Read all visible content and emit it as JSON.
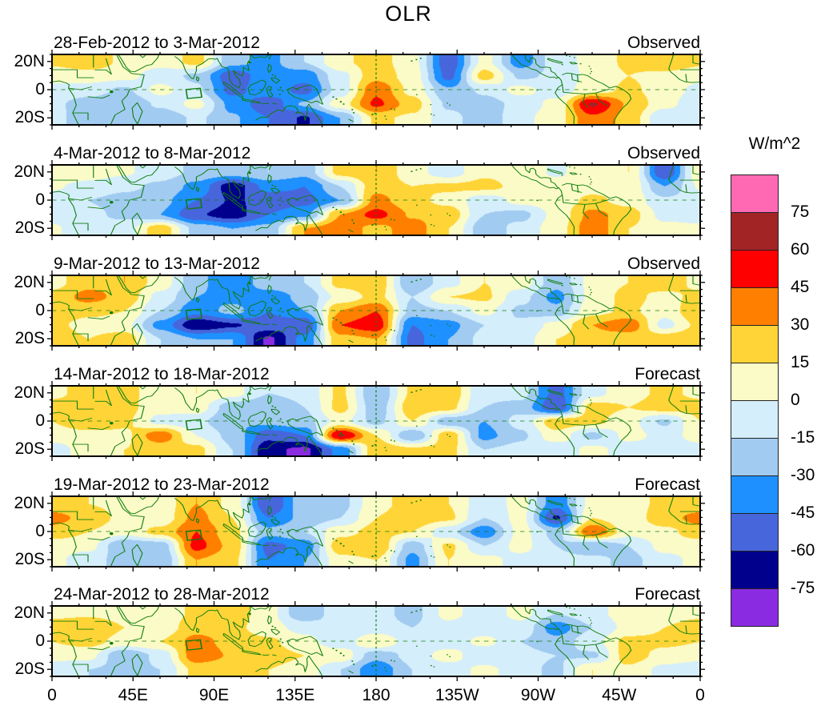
{
  "title": "OLR",
  "units_label": "W/m^2",
  "axes": {
    "x_tick_labels": [
      "0",
      "45E",
      "90E",
      "135E",
      "180",
      "135W",
      "90W",
      "45W",
      "0"
    ],
    "x_tick_degrees": [
      0,
      45,
      90,
      135,
      180,
      225,
      270,
      315,
      360
    ],
    "y_tick_labels": [
      "20N",
      "0",
      "20S"
    ],
    "lat_range": [
      -25,
      25
    ],
    "lon_range": [
      0,
      360
    ]
  },
  "colorbar": {
    "tick_labels": [
      "75",
      "60",
      "45",
      "30",
      "15",
      "0",
      "-15",
      "-30",
      "-45",
      "-60",
      "-75"
    ],
    "level_step": 15,
    "colors_top_to_bottom": [
      "#FF69B4",
      "#A22425",
      "#FF0000",
      "#FF8000",
      "#FFD436",
      "#FBFBC7",
      "#D5EEFB",
      "#A1CBF1",
      "#1E90FF",
      "#4766DC",
      "#00008C",
      "#8A2BE2"
    ]
  },
  "map_style": {
    "coastline_color": "#0E7D0E",
    "gridline_color": "#0E7D0E",
    "border_color": "#000000"
  },
  "panels": [
    {
      "title": "28-Feb-2012 to 3-Mar-2012",
      "tag": "Observed"
    },
    {
      "title": "4-Mar-2012 to 8-Mar-2012",
      "tag": "Observed"
    },
    {
      "title": "9-Mar-2012 to 13-Mar-2012",
      "tag": "Observed"
    },
    {
      "title": "14-Mar-2012 to 18-Mar-2012",
      "tag": "Forecast"
    },
    {
      "title": "19-Mar-2012 to 23-Mar-2012",
      "tag": "Forecast"
    },
    {
      "title": "24-Mar-2012 to 28-Mar-2012",
      "tag": "Forecast"
    }
  ],
  "chart_data": {
    "type": "heatmap",
    "variable": "OLR anomaly",
    "units": "W/m^2",
    "lon_grid_deg": [
      0,
      20,
      40,
      60,
      80,
      100,
      120,
      140,
      160,
      180,
      200,
      220,
      240,
      260,
      280,
      300,
      320,
      340
    ],
    "lat_grid_deg": [
      20,
      10,
      0,
      -10,
      -20
    ],
    "levels": [
      -75,
      -60,
      -45,
      -30,
      -15,
      0,
      15,
      30,
      45,
      60,
      75
    ],
    "panels": [
      {
        "title": "28-Feb-2012 to 3-Mar-2012",
        "tag": "Observed",
        "values": [
          [
            18,
            25,
            12,
            5,
            20,
            -25,
            -35,
            -15,
            12,
            22,
            5,
            -55,
            5,
            -38,
            -8,
            5,
            18,
            28
          ],
          [
            5,
            8,
            5,
            -8,
            -18,
            -55,
            -35,
            -40,
            -5,
            25,
            8,
            -50,
            22,
            -18,
            -12,
            5,
            15,
            10
          ],
          [
            -5,
            -8,
            -18,
            5,
            -12,
            -50,
            -35,
            -50,
            -8,
            42,
            10,
            -28,
            -12,
            5,
            -8,
            8,
            18,
            8
          ],
          [
            -12,
            -22,
            -30,
            -12,
            5,
            -35,
            -55,
            -28,
            8,
            48,
            22,
            -18,
            -22,
            -10,
            5,
            62,
            28,
            5
          ],
          [
            -8,
            -28,
            -18,
            -28,
            -12,
            -28,
            -45,
            -62,
            -30,
            18,
            12,
            -10,
            -25,
            -5,
            10,
            42,
            25,
            -15
          ]
        ]
      },
      {
        "title": "4-Mar-2012 to 8-Mar-2012",
        "tag": "Observed",
        "values": [
          [
            12,
            8,
            2,
            -8,
            -18,
            -22,
            -15,
            -25,
            20,
            30,
            5,
            -8,
            12,
            8,
            -2,
            8,
            15,
            -58
          ],
          [
            2,
            -5,
            -12,
            -18,
            -35,
            -68,
            -40,
            -45,
            -15,
            25,
            15,
            18,
            20,
            10,
            5,
            10,
            12,
            -30
          ],
          [
            -8,
            -15,
            -20,
            -25,
            -45,
            -62,
            -55,
            -50,
            -30,
            35,
            20,
            10,
            -10,
            5,
            8,
            18,
            10,
            -12
          ],
          [
            -5,
            -12,
            -18,
            -30,
            -58,
            -68,
            -45,
            -35,
            30,
            50,
            28,
            25,
            -15,
            -20,
            5,
            35,
            22,
            -5
          ],
          [
            2,
            -10,
            -8,
            25,
            -20,
            -30,
            -25,
            30,
            40,
            25,
            38,
            15,
            -25,
            -10,
            8,
            40,
            15,
            5
          ]
        ]
      },
      {
        "title": "9-Mar-2012 to 13-Mar-2012",
        "tag": "Observed",
        "values": [
          [
            10,
            25,
            30,
            8,
            -25,
            -45,
            -20,
            -15,
            20,
            25,
            -30,
            -5,
            15,
            8,
            -25,
            5,
            15,
            25
          ],
          [
            20,
            35,
            25,
            -5,
            -30,
            -35,
            -40,
            -25,
            5,
            20,
            -15,
            15,
            18,
            -10,
            -35,
            5,
            20,
            10
          ],
          [
            30,
            20,
            15,
            -15,
            -40,
            -25,
            -45,
            -30,
            30,
            45,
            -20,
            -15,
            5,
            -18,
            -25,
            10,
            18,
            5
          ],
          [
            20,
            8,
            5,
            -35,
            -72,
            -62,
            -50,
            -60,
            45,
            55,
            -45,
            -35,
            -15,
            -12,
            5,
            30,
            40,
            -5
          ],
          [
            30,
            15,
            25,
            -15,
            -30,
            -30,
            -78,
            -40,
            25,
            30,
            -50,
            -30,
            -10,
            -8,
            15,
            25,
            20,
            25
          ]
        ]
      },
      {
        "title": "14-Mar-2012 to 18-Mar-2012",
        "tag": "Forecast",
        "values": [
          [
            12,
            20,
            18,
            10,
            15,
            5,
            -15,
            -10,
            18,
            -30,
            18,
            25,
            -12,
            -10,
            -50,
            -5,
            10,
            18
          ],
          [
            20,
            25,
            20,
            5,
            8,
            -25,
            -30,
            -15,
            20,
            -25,
            25,
            20,
            -15,
            -20,
            -60,
            22,
            15,
            22
          ],
          [
            15,
            30,
            18,
            -5,
            -10,
            -30,
            -25,
            -20,
            5,
            -20,
            15,
            -25,
            -30,
            -10,
            25,
            20,
            5,
            -18
          ],
          [
            5,
            8,
            12,
            40,
            0,
            -20,
            -55,
            -45,
            62,
            15,
            -30,
            25,
            -35,
            -18,
            10,
            -20,
            5,
            -5
          ],
          [
            -5,
            5,
            15,
            20,
            20,
            -15,
            -72,
            -78,
            -40,
            25,
            18,
            20,
            -15,
            -10,
            -12,
            5,
            -8,
            -5
          ]
        ]
      },
      {
        "title": "19-Mar-2012 to 23-Mar-2012",
        "tag": "Forecast",
        "values": [
          [
            20,
            15,
            10,
            5,
            30,
            10,
            -60,
            -20,
            -20,
            10,
            22,
            15,
            -10,
            5,
            -40,
            5,
            10,
            18
          ],
          [
            35,
            25,
            10,
            5,
            35,
            15,
            -45,
            -25,
            -15,
            15,
            25,
            18,
            -15,
            5,
            -62,
            15,
            5,
            25
          ],
          [
            25,
            15,
            5,
            20,
            45,
            20,
            -25,
            -15,
            10,
            20,
            15,
            -10,
            -40,
            5,
            -20,
            45,
            5,
            10
          ],
          [
            5,
            5,
            -30,
            -25,
            50,
            25,
            -50,
            -40,
            25,
            30,
            -25,
            18,
            -15,
            5,
            -15,
            -30,
            -15,
            5
          ],
          [
            5,
            -10,
            -20,
            -30,
            30,
            20,
            -45,
            -30,
            10,
            15,
            -35,
            15,
            5,
            -5,
            -10,
            -10,
            -20,
            -5
          ]
        ]
      },
      {
        "title": "24-Mar-2012 to 28-Mar-2012",
        "tag": "Forecast",
        "values": [
          [
            10,
            12,
            8,
            5,
            18,
            25,
            5,
            -28,
            -5,
            -10,
            -20,
            5,
            -10,
            5,
            -15,
            -5,
            8,
            5
          ],
          [
            25,
            30,
            15,
            5,
            25,
            20,
            5,
            -5,
            -15,
            -10,
            -15,
            -5,
            -10,
            -5,
            -38,
            -15,
            5,
            15
          ],
          [
            15,
            20,
            10,
            15,
            35,
            25,
            18,
            5,
            -10,
            15,
            -10,
            -10,
            5,
            -15,
            -25,
            -5,
            20,
            18
          ],
          [
            5,
            5,
            -30,
            -10,
            40,
            28,
            22,
            15,
            10,
            -25,
            -10,
            8,
            -15,
            -10,
            -15,
            -18,
            22,
            10
          ],
          [
            -10,
            -15,
            -20,
            -15,
            20,
            18,
            15,
            8,
            -15,
            -42,
            -15,
            -10,
            5,
            -10,
            -18,
            15,
            12,
            -5
          ]
        ]
      }
    ],
    "region_box_lon": [
      74.8,
      82.8
    ],
    "region_box_lat": [
      0.6,
      -5.8
    ],
    "grid_lines": {
      "equator_dashed": true,
      "dateline_dashed": true
    }
  }
}
